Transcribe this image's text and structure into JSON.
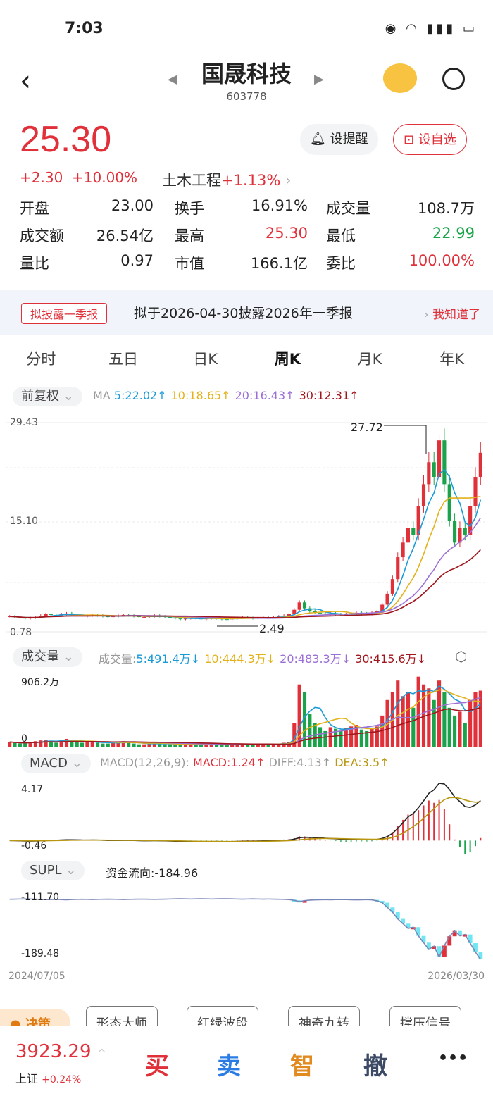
{
  "status": {
    "time": "7:03",
    "icons": [
      "eye-icon",
      "wifi-icon",
      "5g-signal-icon",
      "battery-icon"
    ]
  },
  "header": {
    "title": "国晟科技",
    "code": "603778"
  },
  "quote": {
    "price": "25.30",
    "change": "+2.30",
    "change_pct": "+10.00%",
    "industry": "土木工程",
    "industry_pct": "+1.13%",
    "alert_label": "设提醒",
    "watch_label": "设自选",
    "stats": [
      [
        {
          "k": "开盘",
          "v": "23.00"
        },
        {
          "k": "换手",
          "v": "16.91%"
        },
        {
          "k": "成交量",
          "v": "108.7万"
        }
      ],
      [
        {
          "k": "成交额",
          "v": "26.54亿"
        },
        {
          "k": "最高",
          "v": "25.30",
          "c": "#e0303a"
        },
        {
          "k": "最低",
          "v": "22.99",
          "c": "#1aa34a"
        }
      ],
      [
        {
          "k": "量比",
          "v": "0.97"
        },
        {
          "k": "市值",
          "v": "166.1亿"
        },
        {
          "k": "委比",
          "v": "100.00%",
          "c": "#e0303a"
        }
      ]
    ]
  },
  "notice": {
    "tag": "拟披露一季报",
    "text": "拟于2026-04-30披露2026年一季报",
    "action": "我知道了"
  },
  "tabs": [
    "分时",
    "五日",
    "日K",
    "周K",
    "月K",
    "年K"
  ],
  "active_tab": "周K",
  "kline": {
    "adjust": "前复权",
    "ma_label": "MA",
    "ma": [
      {
        "t": "5:22.02↑",
        "c": "#1a9bd7"
      },
      {
        "t": "10:18.65↑",
        "c": "#e3b21b"
      },
      {
        "t": "20:16.43↑",
        "c": "#9b6fd6"
      },
      {
        "t": "30:12.31↑",
        "c": "#a0161c"
      }
    ],
    "y_top": "29.43",
    "y_mid": "15.10",
    "y_bot": "0.78",
    "high_label": "27.72",
    "low_label": "2.49",
    "ymax": 29.43,
    "ymin": 0.78,
    "closes": [
      2.9,
      2.8,
      2.7,
      2.6,
      2.7,
      2.8,
      3.0,
      3.2,
      3.1,
      3.0,
      3.2,
      3.3,
      3.1,
      3.0,
      2.9,
      3.0,
      3.1,
      3.0,
      2.9,
      2.8,
      2.9,
      3.0,
      3.1,
      3.0,
      2.9,
      2.8,
      2.8,
      2.9,
      3.0,
      2.9,
      2.8,
      2.7,
      2.6,
      2.5,
      2.6,
      2.7,
      2.6,
      2.5,
      2.6,
      2.7,
      2.6,
      2.5,
      2.49,
      2.6,
      2.7,
      2.8,
      2.7,
      2.6,
      2.7,
      2.8,
      2.7,
      2.8,
      2.9,
      3.0,
      3.2,
      3.8,
      4.8,
      4.0,
      3.6,
      3.4,
      3.3,
      3.2,
      3.3,
      3.2,
      3.1,
      3.2,
      3.3,
      3.4,
      3.3,
      3.2,
      3.4,
      3.6,
      4.5,
      6,
      8,
      11,
      13,
      15,
      14,
      18,
      21,
      24,
      22,
      27,
      21,
      16,
      13,
      15,
      14,
      18,
      22,
      25.3
    ]
  },
  "volume": {
    "label": "成交量",
    "legend_prefix": "成交量:",
    "ma": [
      {
        "t": "5:491.4万↓",
        "c": "#1a9bd7"
      },
      {
        "t": "10:444.3万↓",
        "c": "#e3b21b"
      },
      {
        "t": "20:483.3万↓",
        "c": "#9b6fd6"
      },
      {
        "t": "30:415.6万↓",
        "c": "#a0161c"
      }
    ],
    "y_top": "906.2万",
    "y_bot": "0",
    "vmax": 906.2,
    "values": [
      60,
      50,
      40,
      45,
      60,
      70,
      80,
      90,
      60,
      50,
      90,
      100,
      70,
      60,
      50,
      60,
      70,
      50,
      40,
      40,
      50,
      60,
      70,
      50,
      40,
      30,
      30,
      40,
      50,
      40,
      30,
      30,
      20,
      20,
      30,
      30,
      20,
      20,
      30,
      30,
      20,
      20,
      20,
      30,
      30,
      40,
      30,
      30,
      30,
      40,
      30,
      30,
      40,
      50,
      60,
      300,
      800,
      700,
      420,
      300,
      250,
      200,
      250,
      230,
      200,
      240,
      260,
      280,
      220,
      200,
      230,
      260,
      400,
      600,
      700,
      850,
      650,
      700,
      500,
      900,
      800,
      750,
      600,
      850,
      700,
      500,
      400,
      450,
      300,
      600,
      700,
      720
    ]
  },
  "macd": {
    "label": "MACD",
    "params": "MACD(12,26,9):",
    "macd": "MACD:1.24↑",
    "diff": "DIFF:4.13↑",
    "dea": "DEA:3.5↑",
    "y_top": "4.17",
    "y_bot": "-0.46"
  },
  "supl": {
    "label": "SUPL",
    "flow": "资金流向:-184.96",
    "y_top": "-111.70",
    "y_bot": "-189.48"
  },
  "dates": {
    "start": "2024/07/05",
    "end": "2026/03/30"
  },
  "tools": [
    "决策",
    "形态大师",
    "红绿波段",
    "神奇九转",
    "撑压信号"
  ],
  "bottom": {
    "index_value": "3923.29",
    "index_name": "上证",
    "index_pct": "+0.24%",
    "buy": "买",
    "sell": "卖",
    "smart": "智",
    "cancel": "撤",
    "more": "•••"
  },
  "colors": {
    "up": "#e0303a",
    "down": "#1aa34a"
  }
}
